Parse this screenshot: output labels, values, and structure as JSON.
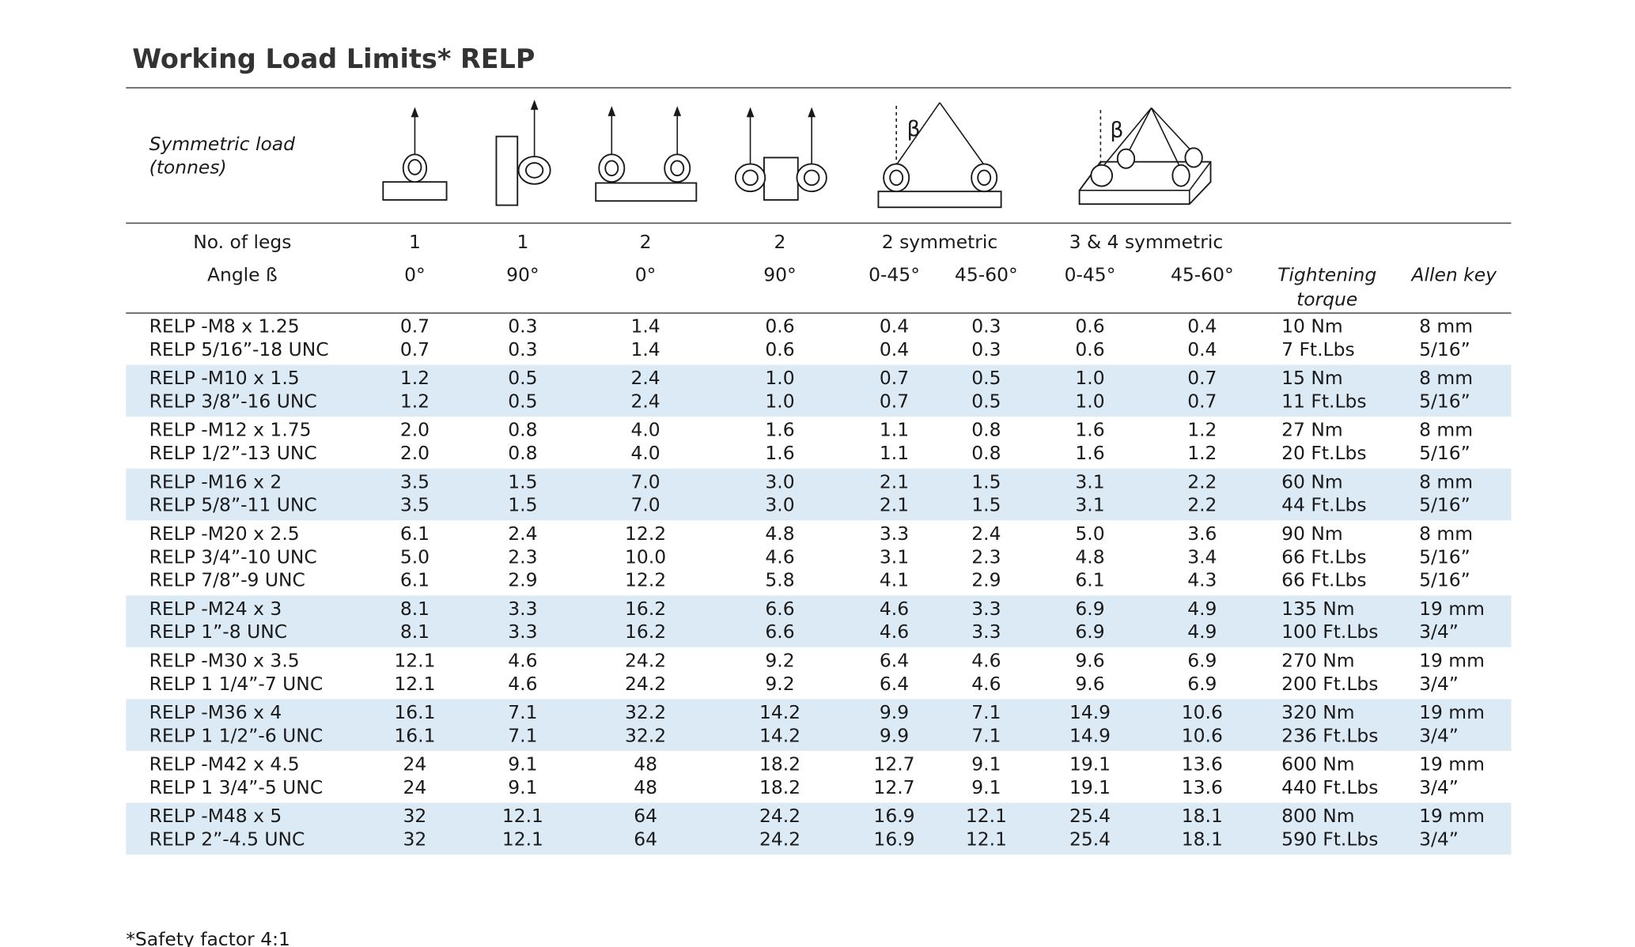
{
  "title": "Working Load Limits* RELP",
  "load_label": [
    "Symmetric load",
    "(tonnes)"
  ],
  "header": {
    "legs": [
      "No. of legs",
      "1",
      "1",
      "2",
      "2",
      "2 symmetric",
      "3 & 4 symmetric"
    ],
    "angle": [
      "Angle ß",
      "0°",
      "90°",
      "0°",
      "90°",
      "0-45°",
      "45-60°",
      "0-45°",
      "45-60°"
    ],
    "torque": [
      "Tightening",
      "torque"
    ],
    "allen": "Allen key"
  },
  "beta": "β",
  "table": {
    "groups": [
      [
        [
          "RELP -M8 x 1.25",
          "0.7",
          "0.3",
          "1.4",
          "0.6",
          "0.4",
          "0.3",
          "0.6",
          "0.4",
          "10 Nm",
          "8 mm"
        ],
        [
          "RELP 5/16”-18 UNC",
          "0.7",
          "0.3",
          "1.4",
          "0.6",
          "0.4",
          "0.3",
          "0.6",
          "0.4",
          "7 Ft.Lbs",
          "5/16”"
        ]
      ],
      [
        [
          "RELP -M10 x 1.5",
          "1.2",
          "0.5",
          "2.4",
          "1.0",
          "0.7",
          "0.5",
          "1.0",
          "0.7",
          "15 Nm",
          "8 mm"
        ],
        [
          "RELP 3/8”-16 UNC",
          "1.2",
          "0.5",
          "2.4",
          "1.0",
          "0.7",
          "0.5",
          "1.0",
          "0.7",
          "11 Ft.Lbs",
          "5/16”"
        ]
      ],
      [
        [
          "RELP -M12 x 1.75",
          "2.0",
          "0.8",
          "4.0",
          "1.6",
          "1.1",
          "0.8",
          "1.6",
          "1.2",
          "27 Nm",
          "8 mm"
        ],
        [
          "RELP 1/2”-13 UNC",
          "2.0",
          "0.8",
          "4.0",
          "1.6",
          "1.1",
          "0.8",
          "1.6",
          "1.2",
          "20 Ft.Lbs",
          "5/16”"
        ]
      ],
      [
        [
          "RELP -M16 x 2",
          "3.5",
          "1.5",
          "7.0",
          "3.0",
          "2.1",
          "1.5",
          "3.1",
          "2.2",
          "60 Nm",
          "8 mm"
        ],
        [
          "RELP 5/8”-11 UNC",
          "3.5",
          "1.5",
          "7.0",
          "3.0",
          "2.1",
          "1.5",
          "3.1",
          "2.2",
          "44 Ft.Lbs",
          "5/16”"
        ]
      ],
      [
        [
          "RELP -M20 x 2.5",
          "6.1",
          "2.4",
          "12.2",
          "4.8",
          "3.3",
          "2.4",
          "5.0",
          "3.6",
          "90 Nm",
          "8 mm"
        ],
        [
          "RELP 3/4”-10 UNC",
          "5.0",
          "2.3",
          "10.0",
          "4.6",
          "3.1",
          "2.3",
          "4.8",
          "3.4",
          "66 Ft.Lbs",
          "5/16”"
        ],
        [
          "RELP 7/8”-9 UNC",
          "6.1",
          "2.9",
          "12.2",
          "5.8",
          "4.1",
          "2.9",
          "6.1",
          "4.3",
          "66 Ft.Lbs",
          "5/16”"
        ]
      ],
      [
        [
          "RELP -M24 x 3",
          "8.1",
          "3.3",
          "16.2",
          "6.6",
          "4.6",
          "3.3",
          "6.9",
          "4.9",
          "135 Nm",
          "19 mm"
        ],
        [
          "RELP 1”-8 UNC",
          "8.1",
          "3.3",
          "16.2",
          "6.6",
          "4.6",
          "3.3",
          "6.9",
          "4.9",
          "100 Ft.Lbs",
          "3/4”"
        ]
      ],
      [
        [
          "RELP -M30 x 3.5",
          "12.1",
          "4.6",
          "24.2",
          "9.2",
          "6.4",
          "4.6",
          "9.6",
          "6.9",
          "270 Nm",
          "19 mm"
        ],
        [
          "RELP 1 1/4”-7 UNC",
          "12.1",
          "4.6",
          "24.2",
          "9.2",
          "6.4",
          "4.6",
          "9.6",
          "6.9",
          "200 Ft.Lbs",
          "3/4”"
        ]
      ],
      [
        [
          "RELP -M36 x 4",
          "16.1",
          "7.1",
          "32.2",
          "14.2",
          "9.9",
          "7.1",
          "14.9",
          "10.6",
          "320 Nm",
          "19 mm"
        ],
        [
          "RELP 1 1/2”-6 UNC",
          "16.1",
          "7.1",
          "32.2",
          "14.2",
          "9.9",
          "7.1",
          "14.9",
          "10.6",
          "236 Ft.Lbs",
          "3/4”"
        ]
      ],
      [
        [
          "RELP -M42 x 4.5",
          "24",
          "9.1",
          "48",
          "18.2",
          "12.7",
          "9.1",
          "19.1",
          "13.6",
          "600 Nm",
          "19 mm"
        ],
        [
          "RELP 1 3/4”-5 UNC",
          "24",
          "9.1",
          "48",
          "18.2",
          "12.7",
          "9.1",
          "19.1",
          "13.6",
          "440 Ft.Lbs",
          "3/4”"
        ]
      ],
      [
        [
          "RELP -M48 x 5",
          "32",
          "12.1",
          "64",
          "24.2",
          "16.9",
          "12.1",
          "25.4",
          "18.1",
          "800 Nm",
          "19 mm"
        ],
        [
          "RELP 2”-4.5 UNC",
          "32",
          "12.1",
          "64",
          "24.2",
          "16.9",
          "12.1",
          "25.4",
          "18.1",
          "590 Ft.Lbs",
          "3/4”"
        ]
      ]
    ]
  },
  "footnote": "*Safety factor  4:1"
}
